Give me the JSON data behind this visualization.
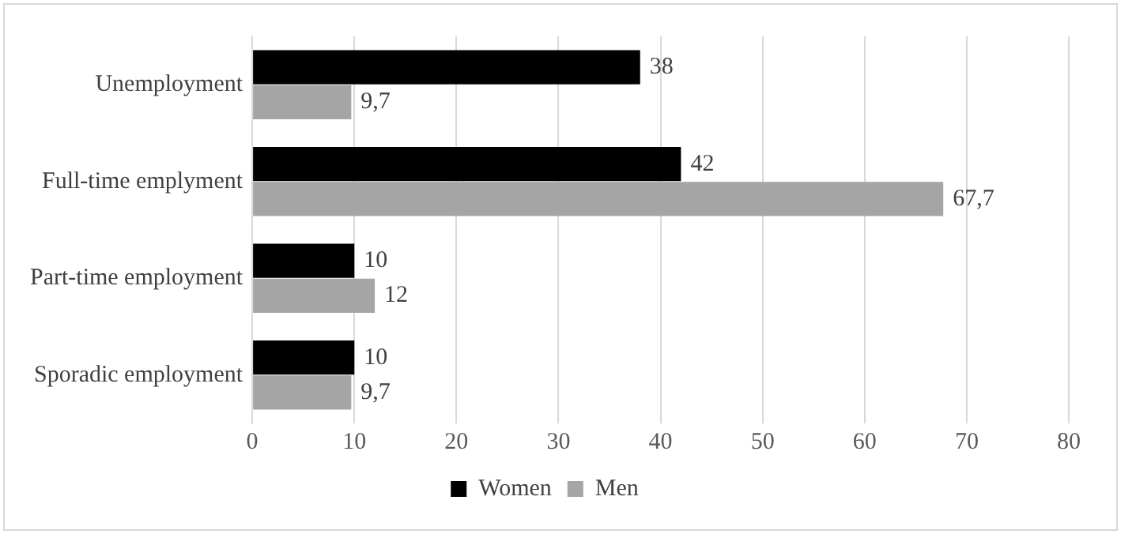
{
  "chart_data": {
    "type": "bar",
    "orientation": "horizontal",
    "categories": [
      "Unemployment",
      "Full-time emplyment",
      "Part-time employment",
      "Sporadic employment"
    ],
    "series": [
      {
        "name": "Women",
        "color": "#000000",
        "values": [
          38,
          42,
          10,
          10
        ],
        "value_labels": [
          "38",
          "42",
          "10",
          "10"
        ]
      },
      {
        "name": "Men",
        "color": "#a5a5a5",
        "values": [
          9.7,
          67.7,
          12,
          9.7
        ],
        "value_labels": [
          "9,7",
          "67,7",
          "12",
          "9,7"
        ]
      }
    ],
    "xlim": [
      0,
      80
    ],
    "xticks": [
      0,
      10,
      20,
      30,
      40,
      50,
      60,
      70,
      80
    ],
    "grid": "x",
    "legend": "bottom"
  }
}
